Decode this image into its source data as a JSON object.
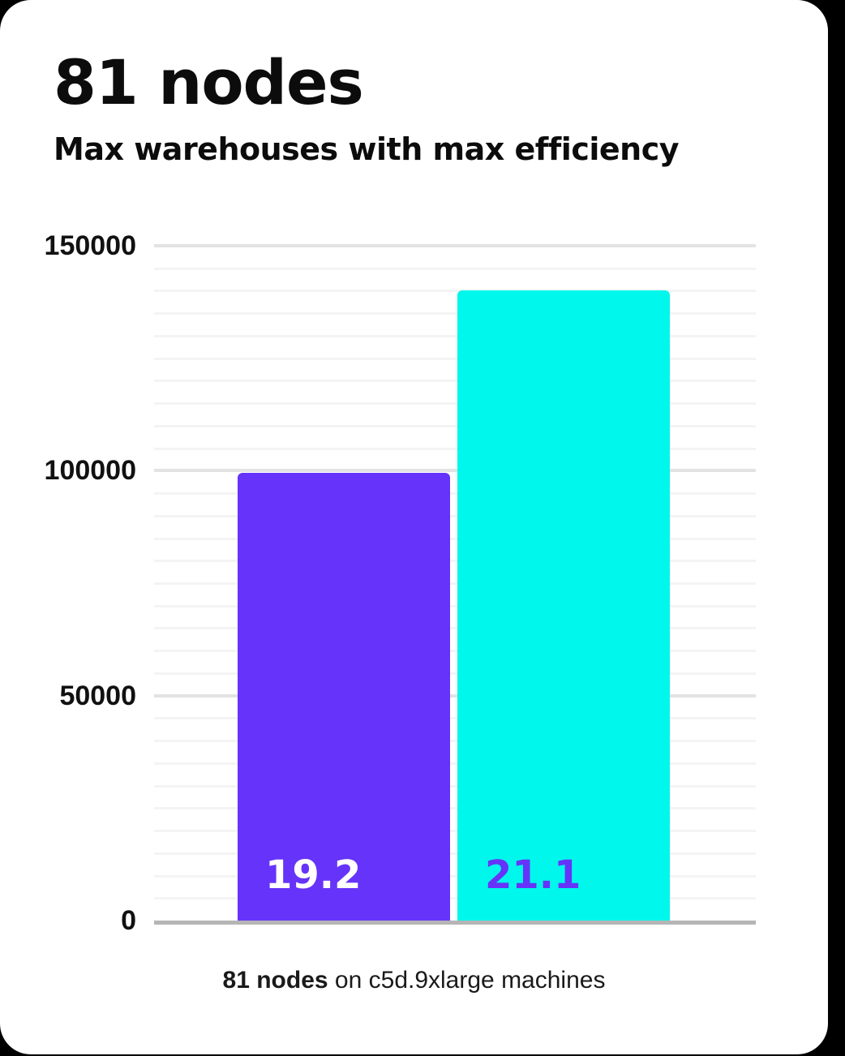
{
  "header": {
    "headline": "81 nodes",
    "subtitle": "Max warehouses with max efficiency"
  },
  "caption": {
    "bold_part": "81 nodes",
    "regular_part": " on c5d.9xlarge machines"
  },
  "colors": {
    "background": "#000000",
    "card": "#ffffff",
    "accent_purple": "#6633FA",
    "accent_cyan": "#00F7EB",
    "grid_minor": "#f4f4f4",
    "grid_major": "#e3e3e3",
    "axis_baseline": "#b5b5b5",
    "text": "#0c0c0c"
  },
  "chart_data": {
    "type": "bar",
    "title": "81 nodes",
    "subtitle": "Max warehouses with max efficiency",
    "caption": "81 nodes on c5d.9xlarge machines",
    "categories": [
      "19.2",
      "21.1"
    ],
    "values": [
      99500,
      140000
    ],
    "bar_labels": [
      "19.2",
      "21.1"
    ],
    "bar_colors": [
      "#6633FA",
      "#00F7EB"
    ],
    "bar_label_colors": [
      "#FFFFFF",
      "#6633FA"
    ],
    "xlabel": "",
    "ylabel": "",
    "ylim": [
      0,
      150000
    ],
    "yticks": [
      0,
      50000,
      100000,
      150000
    ],
    "ytick_labels": [
      "0",
      "50000",
      "100000",
      "150000"
    ],
    "minor_grid_step": 5000,
    "grid": "horizontal-only",
    "legend": "none"
  }
}
